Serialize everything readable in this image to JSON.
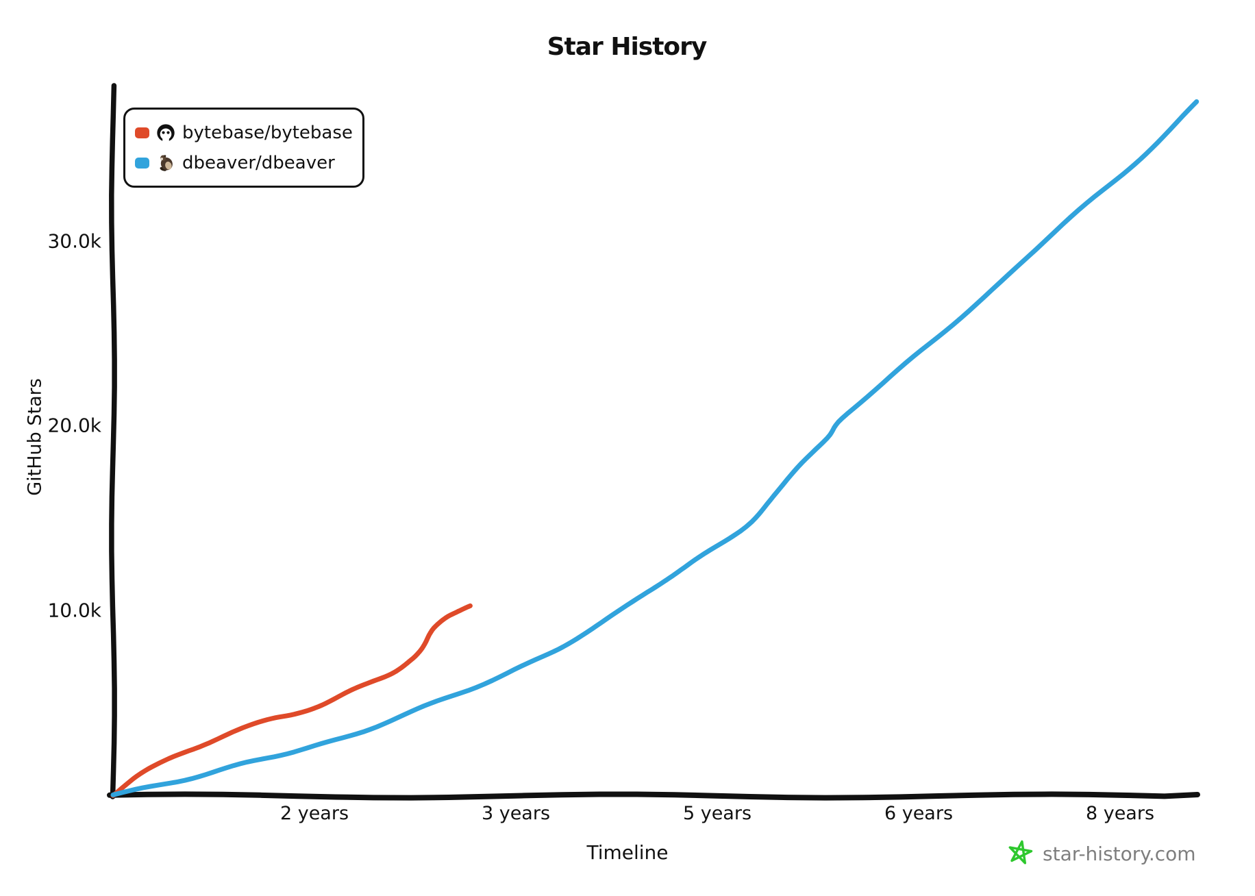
{
  "page": {
    "background": "#ffffff"
  },
  "title": "Star History",
  "legend": {
    "items": [
      {
        "label": "bytebase/bytebase",
        "swatch_color": "#df4a29",
        "icon": "bytebase-logo-icon"
      },
      {
        "label": "dbeaver/dbeaver",
        "swatch_color": "#31a3dc",
        "icon": "dbeaver-logo-icon"
      }
    ]
  },
  "watermark": {
    "label": "star-history.com",
    "star_icon_color": "#2ec82e",
    "text_color": "#7e7e7e"
  },
  "chart_data": {
    "type": "line",
    "title": "Star History",
    "xlabel": "Timeline",
    "ylabel": "GitHub Stars",
    "x_unit": "years since repository creation (aligned timeline)",
    "x_ticks": [
      {
        "label": "2 years",
        "years": 1.5
      },
      {
        "label": "3 years",
        "years": 3.0
      },
      {
        "label": "5 years",
        "years": 4.5
      },
      {
        "label": "6 years",
        "years": 6.0
      },
      {
        "label": "8 years",
        "years": 7.5
      }
    ],
    "y_ticks": [
      {
        "label": "10.0k",
        "value": 10000
      },
      {
        "label": "20.0k",
        "value": 20000
      },
      {
        "label": "30.0k",
        "value": 30000
      }
    ],
    "xlim_years": [
      0,
      8.1
    ],
    "ylim": [
      0,
      38400
    ],
    "grid": false,
    "legend_position": "top-left",
    "axis_color": "#111111",
    "series": [
      {
        "name": "bytebase/bytebase",
        "color": "#df4a29",
        "points_years_stars": [
          [
            0,
            0
          ],
          [
            0.18,
            1040
          ],
          [
            0.38,
            1780
          ],
          [
            0.64,
            2600
          ],
          [
            0.89,
            3410
          ],
          [
            1.15,
            4010
          ],
          [
            1.35,
            4380
          ],
          [
            1.56,
            4900
          ],
          [
            1.76,
            5570
          ],
          [
            1.94,
            6120
          ],
          [
            2.09,
            6640
          ],
          [
            2.22,
            7350
          ],
          [
            2.28,
            7760
          ],
          [
            2.32,
            8160
          ],
          [
            2.36,
            8720
          ],
          [
            2.4,
            9090
          ],
          [
            2.48,
            9540
          ],
          [
            2.57,
            9870
          ],
          [
            2.66,
            10200
          ]
        ]
      },
      {
        "name": "dbeaver/dbeaver",
        "color": "#31a3dc",
        "points_years_stars": [
          [
            0,
            0
          ],
          [
            0.33,
            480
          ],
          [
            0.69,
            1110
          ],
          [
            1.05,
            1820
          ],
          [
            1.4,
            2450
          ],
          [
            1.76,
            3150
          ],
          [
            2.12,
            4190
          ],
          [
            2.47,
            5190
          ],
          [
            2.88,
            6380
          ],
          [
            3.24,
            7610
          ],
          [
            3.49,
            8650
          ],
          [
            3.75,
            9830
          ],
          [
            4.01,
            11130
          ],
          [
            4.16,
            11870
          ],
          [
            4.34,
            12730
          ],
          [
            4.59,
            13840
          ],
          [
            4.76,
            14840
          ],
          [
            4.92,
            16220
          ],
          [
            5.1,
            17700
          ],
          [
            5.32,
            19290
          ],
          [
            5.43,
            20410
          ],
          [
            5.79,
            22630
          ],
          [
            6.2,
            25160
          ],
          [
            6.61,
            27720
          ],
          [
            7.07,
            30910
          ],
          [
            7.47,
            33280
          ],
          [
            7.78,
            35360
          ],
          [
            8.07,
            37480
          ]
        ]
      }
    ]
  }
}
